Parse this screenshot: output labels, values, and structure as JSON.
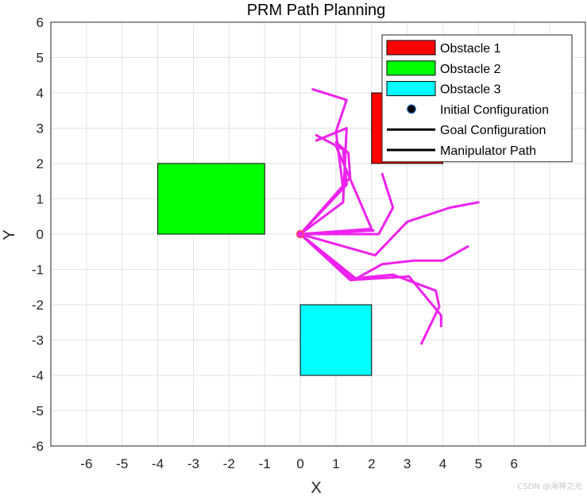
{
  "chart_data": {
    "type": "line",
    "title": "PRM Path Planning",
    "xlabel": "X",
    "ylabel": "Y",
    "xlim": [
      -7,
      8
    ],
    "ylim": [
      -6,
      6
    ],
    "xticks": [
      -6,
      -5,
      -4,
      -3,
      -2,
      -1,
      0,
      1,
      2,
      3,
      4,
      5,
      6
    ],
    "yticks": [
      -6,
      -5,
      -4,
      -3,
      -2,
      -1,
      0,
      1,
      2,
      3,
      4,
      5,
      6
    ],
    "grid": true,
    "legend_position": "top-right",
    "obstacles": [
      {
        "name": "Obstacle 1",
        "x": 2,
        "y": 2,
        "width": 2,
        "height": 2,
        "color": "#ff0000"
      },
      {
        "name": "Obstacle 2",
        "x": -4,
        "y": 0,
        "width": 3,
        "height": 2,
        "color": "#00ff00"
      },
      {
        "name": "Obstacle 3",
        "x": 0,
        "y": -4,
        "width": 2,
        "height": 2,
        "color": "#00ffff"
      }
    ],
    "initial_configuration": {
      "x": 0,
      "y": 0
    },
    "path_color": "#ee22ee",
    "manipulator_paths": [
      [
        [
          0,
          0
        ],
        [
          1.2,
          0.9
        ],
        [
          1.3,
          3.0
        ],
        [
          0.45,
          2.65
        ]
      ],
      [
        [
          0,
          0
        ],
        [
          1.3,
          1.4
        ],
        [
          1.2,
          2.4
        ],
        [
          0.45,
          2.8
        ]
      ],
      [
        [
          0,
          0
        ],
        [
          1.2,
          1.3
        ],
        [
          1.0,
          2.9
        ],
        [
          1.3,
          3.8
        ],
        [
          0.35,
          4.1
        ]
      ],
      [
        [
          0,
          0
        ],
        [
          1.4,
          1.6
        ],
        [
          1.35,
          2.3
        ],
        [
          1.0,
          2.6
        ]
      ],
      [
        [
          0,
          0
        ],
        [
          2.0,
          0.15
        ],
        [
          1.0,
          2.5
        ]
      ],
      [
        [
          0,
          0
        ],
        [
          2.05,
          0.1
        ],
        [
          2.0,
          0.1
        ]
      ],
      [
        [
          0,
          0
        ],
        [
          2.2,
          0.0
        ],
        [
          2.6,
          0.75
        ],
        [
          2.3,
          1.7
        ]
      ],
      [
        [
          0,
          0
        ],
        [
          2.1,
          -0.6
        ],
        [
          3.0,
          0.35
        ],
        [
          4.2,
          0.75
        ],
        [
          5.0,
          0.9
        ]
      ],
      [
        [
          0,
          0
        ],
        [
          1.5,
          -1.3
        ],
        [
          2.3,
          -0.85
        ],
        [
          3.2,
          -0.75
        ],
        [
          4.0,
          -0.75
        ],
        [
          4.7,
          -0.35
        ]
      ],
      [
        [
          0,
          0
        ],
        [
          1.4,
          -1.3
        ],
        [
          3.05,
          -1.2
        ],
        [
          3.95,
          -2.3
        ],
        [
          3.95,
          -2.6
        ]
      ],
      [
        [
          0,
          0
        ],
        [
          1.55,
          -1.25
        ],
        [
          2.6,
          -1.15
        ],
        [
          3.8,
          -1.6
        ],
        [
          3.9,
          -2.05
        ],
        [
          3.4,
          -3.1
        ]
      ]
    ],
    "legend": [
      {
        "label": "Obstacle 1",
        "kind": "patch",
        "color": "#ff0000"
      },
      {
        "label": "Obstacle 2",
        "kind": "patch",
        "color": "#00ff00"
      },
      {
        "label": "Obstacle 3",
        "kind": "patch",
        "color": "#00ffff"
      },
      {
        "label": "Initial Configuration",
        "kind": "marker",
        "color": "#000000"
      },
      {
        "label": "Goal Configuration",
        "kind": "line",
        "color": "#000000"
      },
      {
        "label": "Manipulator Path",
        "kind": "line",
        "color": "#000000"
      }
    ]
  },
  "watermark": "CSDN @海神之光"
}
